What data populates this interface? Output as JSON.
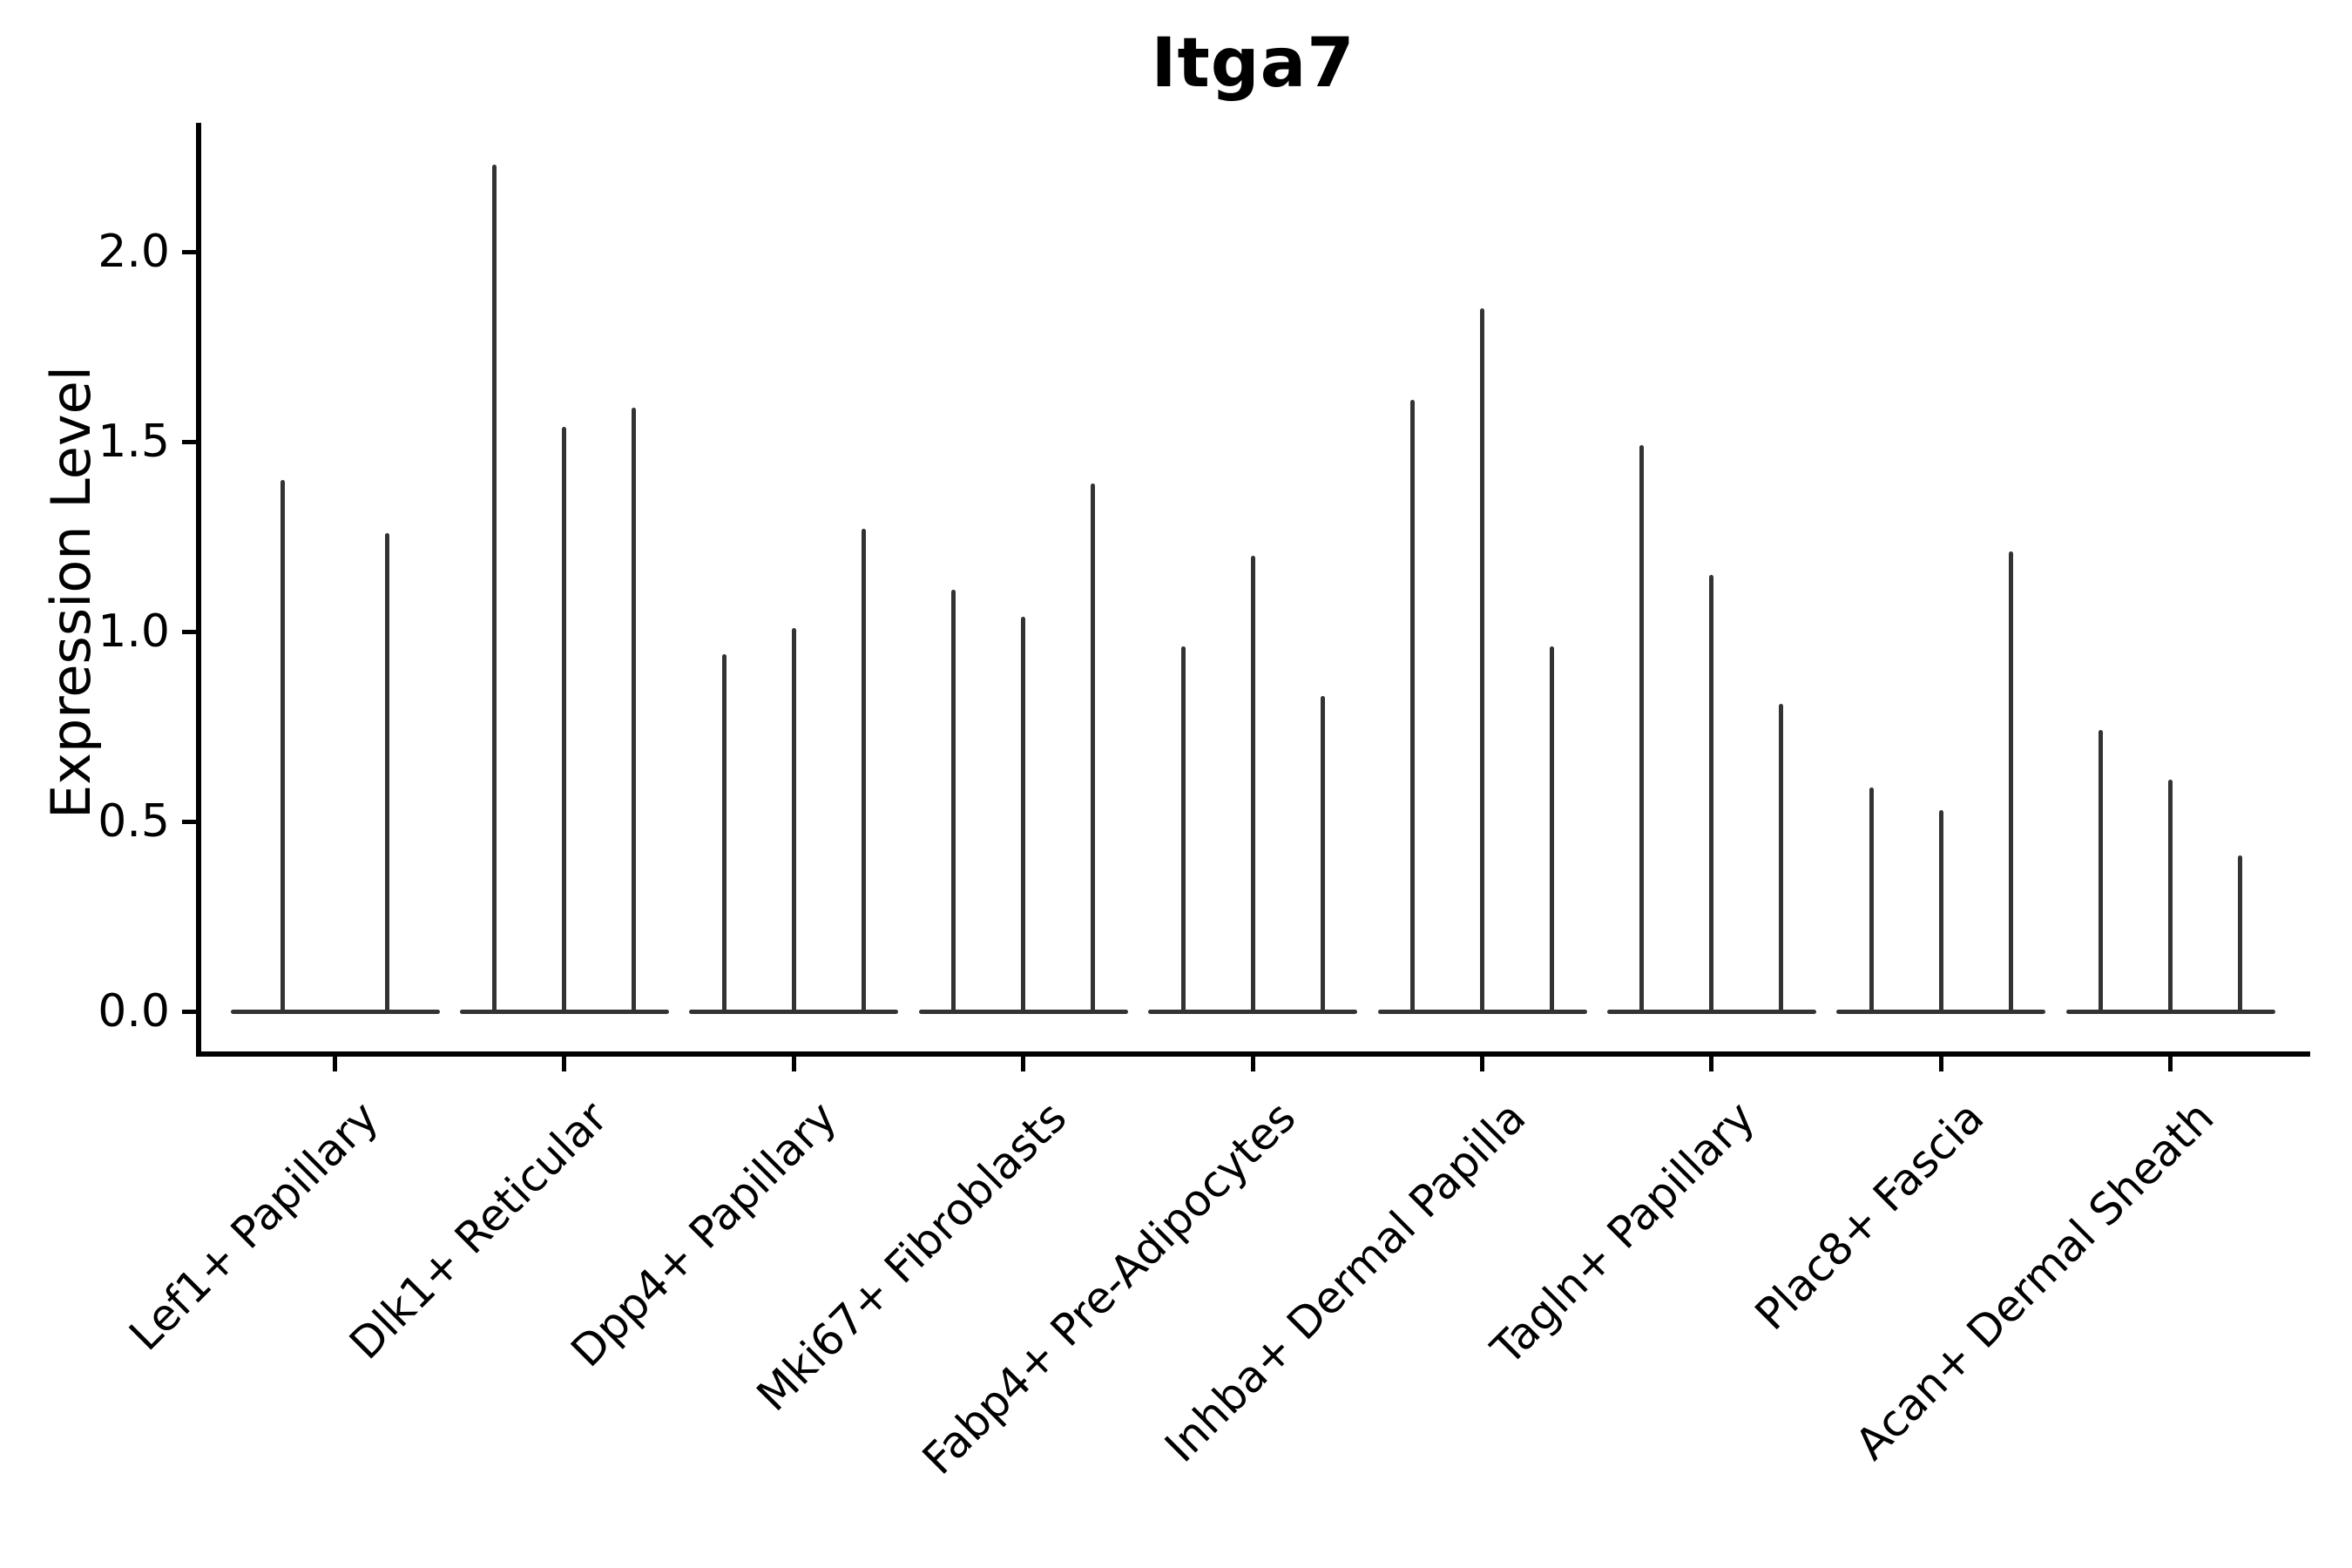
{
  "chart_data": {
    "type": "violin",
    "title": "Itga7",
    "xlabel": "",
    "ylabel": "Expression Level",
    "ylim": [
      -0.11,
      2.34
    ],
    "grid": false,
    "legend": "none",
    "ytick_labels": [
      "0.0",
      "0.5",
      "1.0",
      "1.5",
      "2.0"
    ],
    "ytick_values": [
      0.0,
      0.5,
      1.0,
      1.5,
      2.0
    ],
    "violin_color": "#333333",
    "axis_color": "#000000",
    "note": "Each category shows narrow violins collapsed to vertical spikes; values are the max expression level reached by each violin",
    "categories": [
      {
        "label": "Lef1+ Papillary",
        "violin_peaks": [
          1.4,
          1.26
        ]
      },
      {
        "label": "Dlk1+ Reticular",
        "violin_peaks": [
          2.23,
          1.54,
          1.59
        ]
      },
      {
        "label": "Dpp4+ Papillary",
        "violin_peaks": [
          0.94,
          1.01,
          1.27
        ]
      },
      {
        "label": "Mki67+ Fibroblasts",
        "violin_peaks": [
          1.11,
          1.04,
          1.39
        ]
      },
      {
        "label": "Fabp4+ Pre-Adipocytes",
        "violin_peaks": [
          0.96,
          1.2,
          0.83
        ]
      },
      {
        "label": "Inhba+ Dermal Papilla",
        "violin_peaks": [
          1.61,
          1.85,
          0.96
        ]
      },
      {
        "label": "Tagln+ Papillary",
        "violin_peaks": [
          1.49,
          1.15,
          0.81
        ]
      },
      {
        "label": "Plac8+ Fascia",
        "violin_peaks": [
          0.59,
          0.53,
          1.21
        ]
      },
      {
        "label": "Acan+ Dermal Sheath",
        "violin_peaks": [
          0.74,
          0.61,
          0.41
        ]
      }
    ]
  }
}
